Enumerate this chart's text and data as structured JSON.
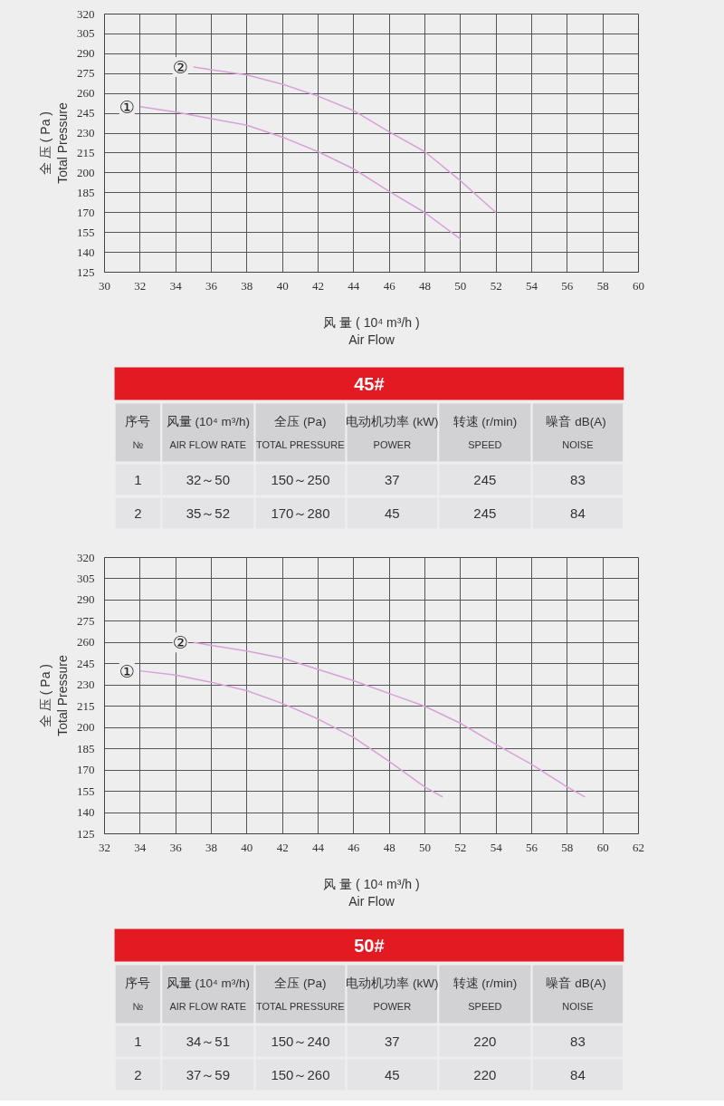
{
  "chart_data": [
    {
      "type": "line",
      "xlabel": "风 量 ( 10⁴ m³/h )\nAir Flow",
      "ylabel": "全 压 ( Pa )\nTotal Pressure",
      "xlim": [
        30,
        60
      ],
      "xticks": [
        30,
        32,
        34,
        36,
        38,
        40,
        42,
        44,
        46,
        48,
        50,
        52,
        54,
        56,
        58,
        60
      ],
      "ylim": [
        125,
        320
      ],
      "yticks": [
        125,
        140,
        155,
        170,
        185,
        200,
        215,
        230,
        245,
        260,
        275,
        290,
        305,
        320
      ],
      "grid": true,
      "series": [
        {
          "name": "①",
          "color": "#d9a0d8",
          "x": [
            32,
            34,
            36,
            38,
            40,
            42,
            44,
            46,
            48,
            50
          ],
          "values": [
            250,
            246,
            241,
            236,
            227,
            216,
            203,
            186,
            170,
            150
          ]
        },
        {
          "name": "②",
          "color": "#d9a0d8",
          "x": [
            35,
            36,
            38,
            40,
            42,
            44,
            46,
            48,
            50,
            52
          ],
          "values": [
            280,
            278,
            274,
            267,
            258,
            247,
            231,
            216,
            194,
            170
          ]
        }
      ]
    },
    {
      "type": "other",
      "title": "45#",
      "annotations": [
        "序号\n№",
        "风量 (10⁴ m³/h)\nAIR FLOW RATE",
        "全压 (Pa)\nTOTAL PRESSURE",
        "电动机功率 (kW)\nPOWER",
        "转速 (r/min)\nSPEED",
        "噪音  dB(A)\nNOISE",
        "1",
        "32～50",
        "150～250",
        "37",
        "245",
        "83",
        "2",
        "35～52",
        "170～280",
        "45",
        "245",
        "84"
      ]
    },
    {
      "type": "line",
      "xlabel": "风 量 ( 10⁴ m³/h )\nAir Flow",
      "ylabel": "全 压 ( Pa )\nTotal Pressure",
      "xlim": [
        32,
        62
      ],
      "xticks": [
        32,
        34,
        36,
        38,
        40,
        42,
        44,
        46,
        48,
        50,
        52,
        54,
        56,
        58,
        60,
        62
      ],
      "ylim": [
        125,
        320
      ],
      "yticks": [
        125,
        140,
        155,
        170,
        185,
        200,
        215,
        230,
        245,
        260,
        275,
        290,
        305,
        320
      ],
      "grid": true,
      "series": [
        {
          "name": "①",
          "color": "#d9a0d8",
          "x": [
            34,
            36,
            38,
            40,
            42,
            44,
            46,
            48,
            50,
            51
          ],
          "values": [
            240,
            237,
            232,
            226,
            217,
            206,
            193,
            176,
            158,
            151
          ]
        },
        {
          "name": "②",
          "color": "#d9a0d8",
          "x": [
            37,
            38,
            40,
            42,
            44,
            46,
            48,
            50,
            52,
            54,
            56,
            58,
            59
          ],
          "values": [
            260,
            258,
            254,
            249,
            241,
            233,
            224,
            215,
            203,
            188,
            174,
            158,
            151
          ]
        }
      ]
    },
    {
      "type": "other",
      "title": "50#",
      "annotations": [
        "序号\n№",
        "风量 (10⁴ m³/h)\nAIR FLOW RATE",
        "全压 (Pa)\nTOTAL PRESSURE",
        "电动机功率 (kW)\nPOWER",
        "转速 (r/min)\nSPEED",
        "噪音  dB(A)\nNOISE",
        "1",
        "34～51",
        "150～240",
        "37",
        "220",
        "83",
        "2",
        "37～59",
        "150～260",
        "45",
        "220",
        "84"
      ]
    }
  ]
}
